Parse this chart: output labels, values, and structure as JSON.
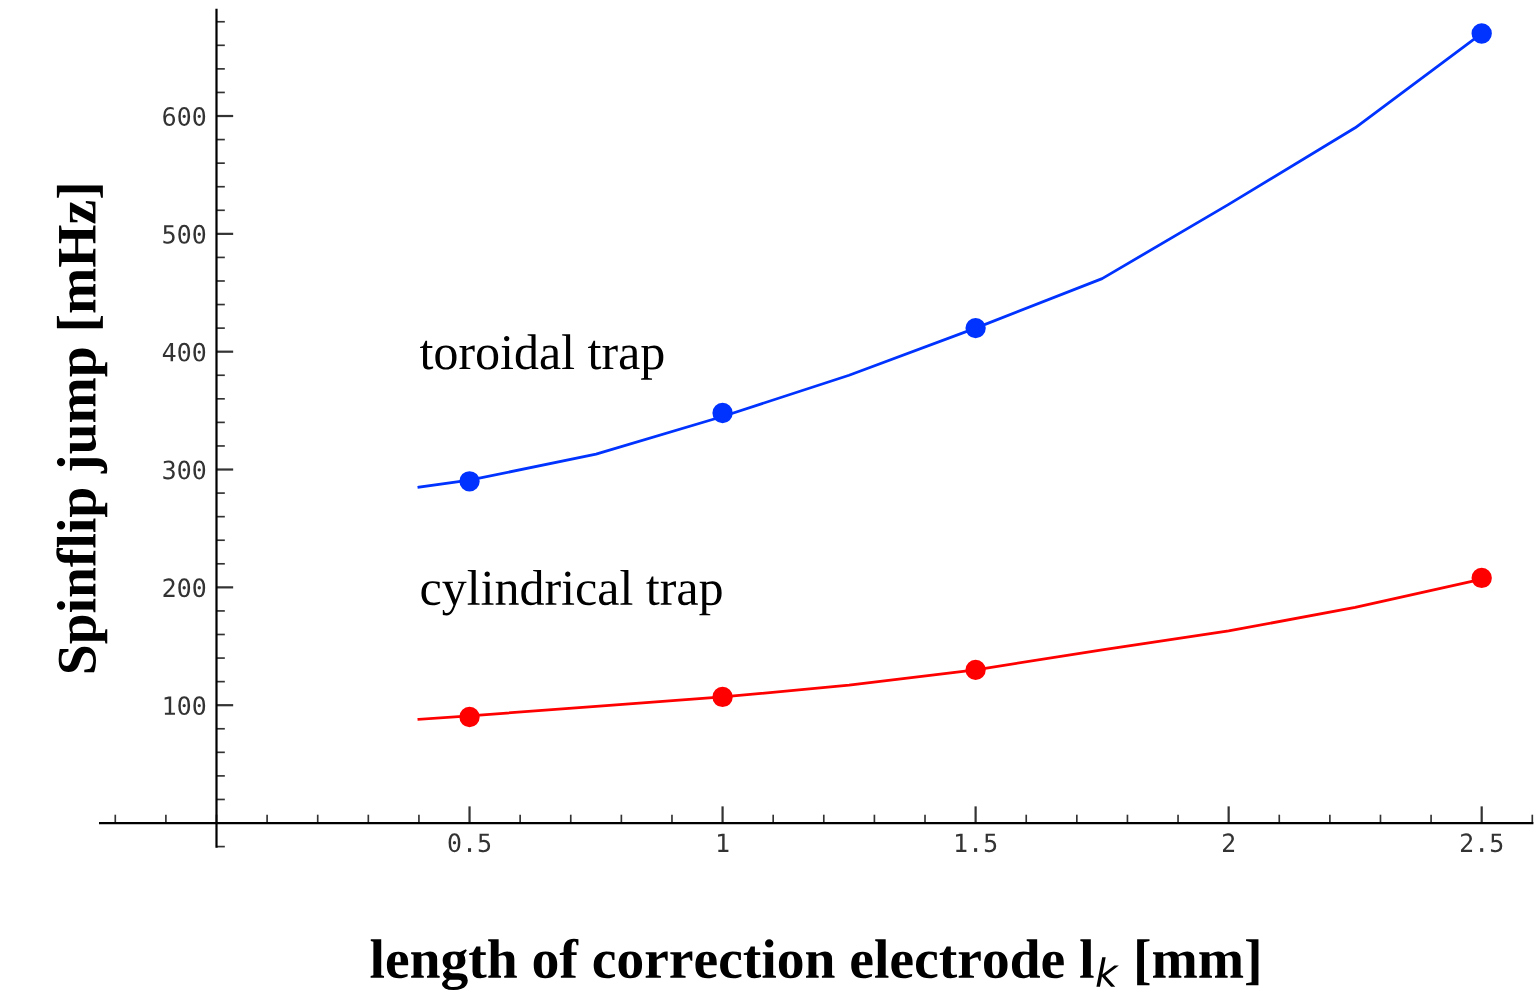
{
  "chart_data": {
    "type": "line",
    "xlabel": "length of correction electrode l$_{k}$ [mm]",
    "ylabel": "Spinflip jump [mHz]",
    "series": [
      {
        "name": "toroidal trap",
        "color": "#0033ff",
        "x": [
          0.4,
          0.5,
          0.75,
          1.0,
          1.25,
          1.5,
          1.75,
          2.0,
          2.25,
          2.5
        ],
        "values": [
          285,
          291,
          313,
          345,
          380,
          420,
          462,
          525,
          590,
          670
        ]
      },
      {
        "type": "scatter",
        "color": "#0033ff",
        "x": [
          0.5,
          1.0,
          1.5,
          2.5
        ],
        "values": [
          290,
          348,
          420,
          670
        ]
      },
      {
        "name": "cylindrical trap",
        "color": "#ff0000",
        "x": [
          0.4,
          0.5,
          0.75,
          1.0,
          1.25,
          1.5,
          1.75,
          2.0,
          2.25,
          2.5
        ],
        "values": [
          88,
          91,
          99,
          107,
          117,
          130,
          147,
          163,
          183,
          207
        ]
      },
      {
        "type": "scatter",
        "color": "#ff0000",
        "x": [
          0.5,
          1.0,
          1.5,
          2.5
        ],
        "values": [
          90,
          107,
          130,
          208
        ]
      }
    ],
    "xlim": [
      -0.23,
      2.6
    ],
    "ylim": [
      -20,
      690
    ],
    "xticks": [
      {
        "value": 0.5,
        "label": "0.5"
      },
      {
        "value": 1,
        "label": "1"
      },
      {
        "value": 1.5,
        "label": "1.5"
      },
      {
        "value": 2,
        "label": "2"
      },
      {
        "value": 2.5,
        "label": "2.5"
      }
    ],
    "yticks": [
      100,
      200,
      300,
      400,
      500,
      600
    ],
    "grid": false,
    "legend": false
  }
}
